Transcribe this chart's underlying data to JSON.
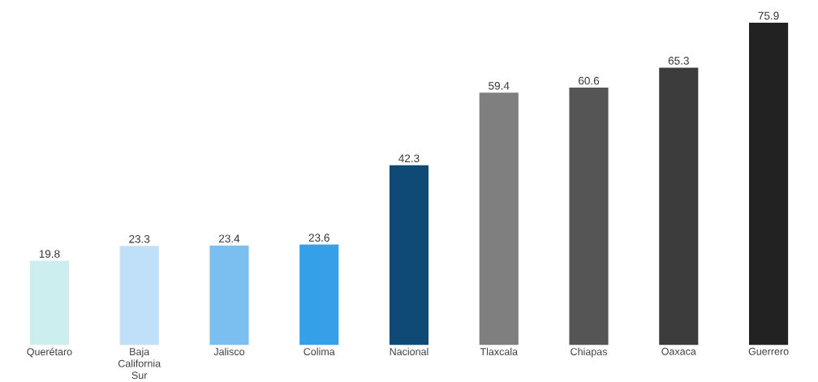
{
  "chart_data": {
    "type": "bar",
    "categories": [
      "Querétaro",
      "Baja California Sur",
      "Jalisco",
      "Colima",
      "Nacional",
      "Tlaxcala",
      "Chiapas",
      "Oaxaca",
      "Guerrero"
    ],
    "values": [
      19.8,
      23.3,
      23.4,
      23.6,
      42.3,
      59.4,
      60.6,
      65.3,
      75.9
    ],
    "colors": [
      "#cdeeee",
      "#bfe0f8",
      "#7bbff0",
      "#35a0e8",
      "#0e4a75",
      "#7f7f7f",
      "#555555",
      "#3c3c3c",
      "#222222"
    ],
    "data_labels": true
  }
}
